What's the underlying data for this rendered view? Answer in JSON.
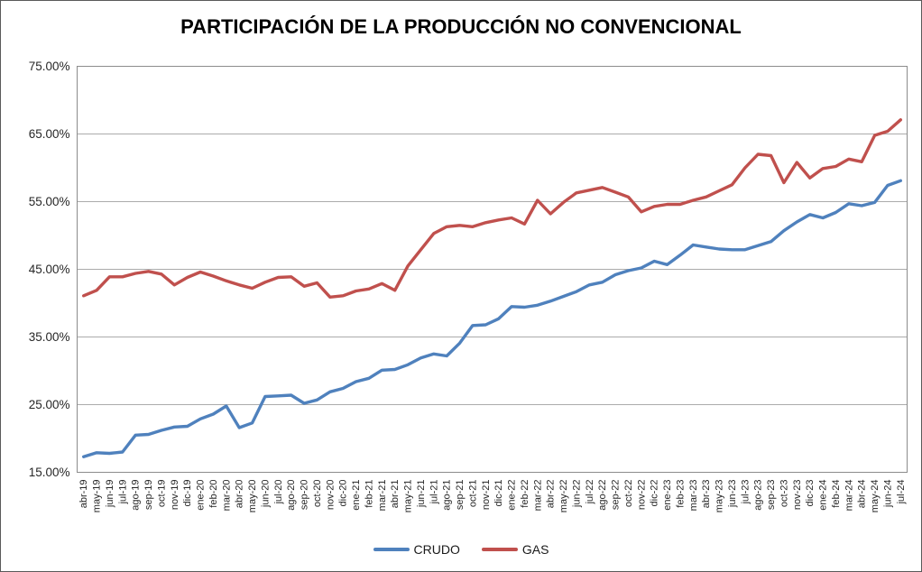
{
  "chart_data": {
    "type": "line",
    "title": "PARTICIPACIÓN DE LA PRODUCCIÓN NO CONVENCIONAL",
    "x": [
      "abr-19",
      "may-19",
      "jun-19",
      "jul-19",
      "ago-19",
      "sep-19",
      "oct-19",
      "nov-19",
      "dic-19",
      "ene-20",
      "feb-20",
      "mar-20",
      "abr-20",
      "may-20",
      "jun-20",
      "jul-20",
      "ago-20",
      "sep-20",
      "oct-20",
      "nov-20",
      "dic-20",
      "ene-21",
      "feb-21",
      "mar-21",
      "abr-21",
      "may-21",
      "jun-21",
      "jul-21",
      "ago-21",
      "sep-21",
      "oct-21",
      "nov-21",
      "dic-21",
      "ene-22",
      "feb-22",
      "mar-22",
      "abr-22",
      "may-22",
      "jun-22",
      "jul-22",
      "ago-22",
      "sep-22",
      "oct-22",
      "nov-22",
      "dic-22",
      "ene-23",
      "feb-23",
      "mar-23",
      "abr-23",
      "may-23",
      "jun-23",
      "jul-23",
      "ago-23",
      "sep-23",
      "oct-23",
      "nov-23",
      "dic-23",
      "ene-24",
      "feb-24",
      "mar-24",
      "abr-24",
      "may-24",
      "jun-24",
      "jul-24"
    ],
    "series": [
      {
        "name": "CRUDO",
        "color": "#4F81BD",
        "values": [
          17.3,
          17.9,
          17.8,
          18.0,
          20.5,
          20.6,
          21.2,
          21.7,
          21.8,
          22.9,
          23.6,
          24.8,
          21.6,
          22.3,
          26.2,
          26.3,
          26.4,
          25.2,
          25.7,
          26.9,
          27.4,
          28.4,
          28.9,
          30.1,
          30.2,
          30.9,
          31.9,
          32.5,
          32.2,
          34.1,
          36.7,
          36.8,
          37.7,
          39.5,
          39.4,
          39.7,
          40.3,
          41.0,
          41.7,
          42.7,
          43.1,
          44.2,
          44.8,
          45.2,
          46.2,
          45.7,
          47.1,
          48.6,
          48.3,
          48.0,
          47.9,
          47.9,
          48.5,
          49.1,
          50.7,
          52.0,
          53.1,
          52.6,
          53.4,
          54.7,
          54.4,
          54.9,
          57.4,
          58.1
        ]
      },
      {
        "name": "GAS",
        "color": "#C0504D",
        "values": [
          41.1,
          41.9,
          43.9,
          43.9,
          44.4,
          44.7,
          44.3,
          42.7,
          43.8,
          44.6,
          44.0,
          43.3,
          42.7,
          42.2,
          43.1,
          43.8,
          43.9,
          42.5,
          43.0,
          40.9,
          41.1,
          41.8,
          42.1,
          42.9,
          41.9,
          45.5,
          47.9,
          50.3,
          51.3,
          51.5,
          51.3,
          51.9,
          52.3,
          52.6,
          51.7,
          55.2,
          53.2,
          54.9,
          56.3,
          56.7,
          57.1,
          56.4,
          55.7,
          53.5,
          54.3,
          54.6,
          54.6,
          55.2,
          55.7,
          56.6,
          57.5,
          60.0,
          62.0,
          61.8,
          57.8,
          60.8,
          58.5,
          59.9,
          60.2,
          61.3,
          60.9,
          64.8,
          65.4,
          67.1
        ]
      }
    ],
    "ylim": [
      15,
      75
    ],
    "y_tick_step": 10,
    "y_tick_labels": [
      "75.00%",
      "65.00%",
      "55.00%",
      "45.00%",
      "35.00%",
      "25.00%",
      "15.00%"
    ],
    "grid": true,
    "legend_position": "bottom",
    "colors": {
      "gridline": "#ABABAB",
      "plot_border": "#8C8C8C",
      "tick_text": "#262626"
    }
  }
}
